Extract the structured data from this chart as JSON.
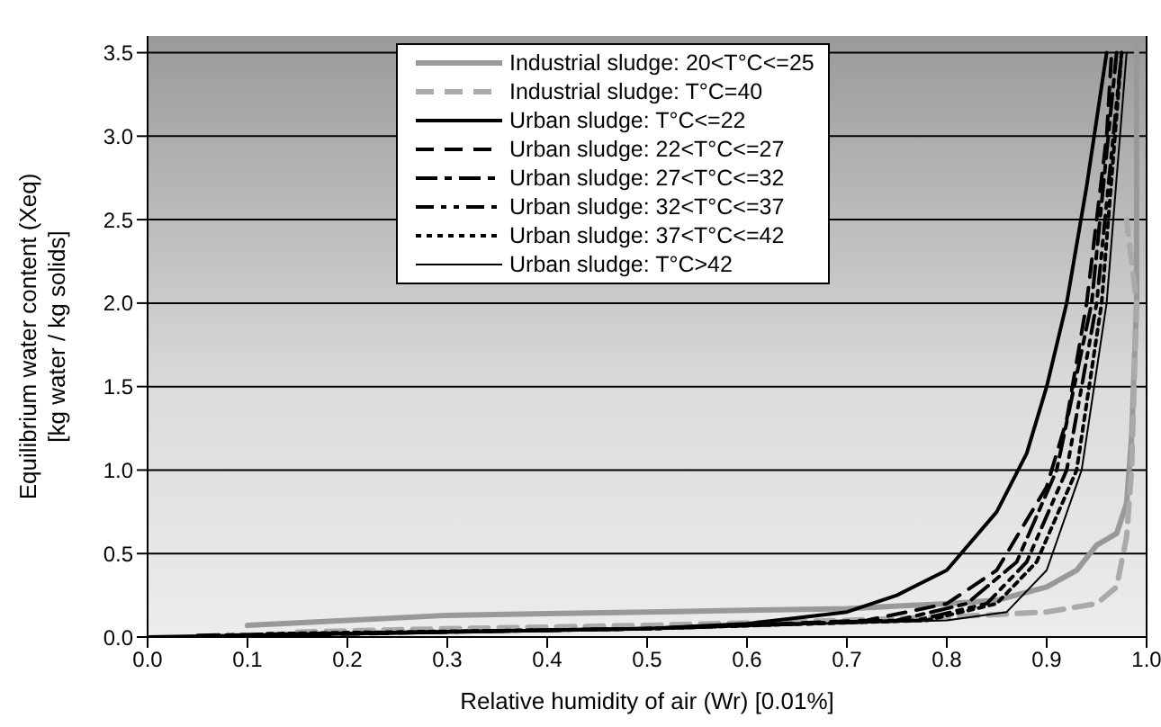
{
  "chart_data": {
    "type": "line",
    "xlabel": "Relative humidity of air (Wr)  [0.01%]",
    "ylabel": "Equilibrium water content (Xeq)\n[kg water / kg solids]",
    "xlim": [
      0,
      1
    ],
    "ylim": [
      0,
      3.6
    ],
    "xticks": [
      {
        "value": 0,
        "label": "0.0"
      },
      0.1,
      0.2,
      0.3,
      0.4,
      0.5,
      0.6,
      0.7,
      0.8,
      0.9,
      {
        "value": 1,
        "label": "1.0"
      }
    ],
    "yticks": [
      {
        "value": 0,
        "label": "0.0"
      },
      0.5,
      {
        "value": 1,
        "label": "1.0"
      },
      1.5,
      {
        "value": 2,
        "label": "2.0"
      },
      2.5,
      {
        "value": 3,
        "label": "3.0"
      },
      3.5
    ],
    "grid": "y",
    "legend": "top",
    "marker": "none",
    "series": [
      {
        "name": "Industrial sludge: 20<T°C<=25",
        "color": "#999999",
        "line_style": "solid",
        "x": [
          0.1,
          0.2,
          0.3,
          0.4,
          0.5,
          0.6,
          0.7,
          0.8,
          0.85,
          0.9,
          0.93,
          0.95,
          0.97,
          0.98,
          0.985,
          0.99,
          0.99,
          0.99
        ],
        "values": [
          0.07,
          0.1,
          0.13,
          0.14,
          0.15,
          0.16,
          0.17,
          0.2,
          0.22,
          0.3,
          0.4,
          0.55,
          0.62,
          0.8,
          1.2,
          2.0,
          2.5,
          3.55
        ]
      },
      {
        "name": "Industrial sludge: T°C=40",
        "color": "#aaaaaa",
        "line_style": "dashed",
        "x": [
          0.15,
          0.3,
          0.5,
          0.7,
          0.8,
          0.9,
          0.95,
          0.97,
          0.98,
          0.985,
          0.99,
          0.98
        ],
        "values": [
          0.03,
          0.05,
          0.07,
          0.1,
          0.12,
          0.15,
          0.2,
          0.3,
          0.6,
          1.0,
          2.0,
          2.5
        ]
      },
      {
        "name": "Urban sludge: T°C<=22",
        "color": "#000000",
        "line_style": "solid",
        "x": [
          0,
          0.3,
          0.5,
          0.6,
          0.7,
          0.75,
          0.8,
          0.85,
          0.88,
          0.9,
          0.92,
          0.94,
          0.96
        ],
        "values": [
          0,
          0.03,
          0.05,
          0.08,
          0.15,
          0.25,
          0.4,
          0.75,
          1.1,
          1.5,
          2.0,
          2.7,
          3.5
        ]
      },
      {
        "name": "Urban sludge: 22<T°C<=27",
        "color": "#000000",
        "line_style": "dashed",
        "x": [
          0.05,
          0.3,
          0.5,
          0.72,
          0.8,
          0.85,
          0.9,
          0.92,
          0.94,
          0.96,
          0.965
        ],
        "values": [
          0,
          0.03,
          0.05,
          0.1,
          0.2,
          0.4,
          0.9,
          1.3,
          2.0,
          3.0,
          3.5
        ]
      },
      {
        "name": "Urban sludge: 27<T°C<=32",
        "color": "#000000",
        "line_style": "dashed",
        "x": [
          0.05,
          0.5,
          0.75,
          0.82,
          0.87,
          0.91,
          0.945,
          0.97
        ],
        "values": [
          0.01,
          0.05,
          0.1,
          0.2,
          0.45,
          1.0,
          2.0,
          3.5
        ]
      },
      {
        "name": "Urban sludge: 32<T°C<=37",
        "color": "#000000",
        "line_style": "dashed",
        "x": [
          0.08,
          0.5,
          0.77,
          0.84,
          0.88,
          0.92,
          0.95,
          0.975
        ],
        "values": [
          0.01,
          0.05,
          0.1,
          0.2,
          0.45,
          1.0,
          2.0,
          3.5
        ]
      },
      {
        "name": "Urban sludge: 37<T°C<=42",
        "color": "#000000",
        "line_style": "dotted",
        "x": [
          0.12,
          0.5,
          0.78,
          0.85,
          0.89,
          0.93,
          0.955,
          0.975
        ],
        "values": [
          0.02,
          0.05,
          0.1,
          0.2,
          0.45,
          1.0,
          2.0,
          3.5
        ]
      },
      {
        "name": "Urban sludge: T°C>42",
        "color": "#000000",
        "line_style": "solid",
        "x": [
          0.15,
          0.5,
          0.8,
          0.86,
          0.9,
          0.935,
          0.96,
          0.98
        ],
        "values": [
          0.02,
          0.05,
          0.1,
          0.15,
          0.4,
          1.0,
          2.0,
          3.5
        ]
      }
    ]
  }
}
